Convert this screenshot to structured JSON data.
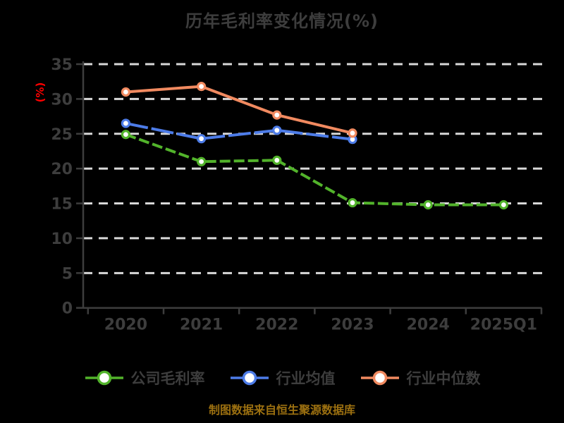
{
  "title": "历年毛利率变化情况(%)",
  "footer": {
    "source_note": "制图数据来自恒生聚源数据库"
  },
  "colors": {
    "background": "#000000",
    "text": "#3d3d3d",
    "axis": "#3d3d3d",
    "grid": "#d8d8d8",
    "ylabel_red": "#ff0000",
    "footer_gold": "#9c7010",
    "company_green": "#52b32b",
    "industry_mean_blue": "#4d7ce8",
    "industry_median_orange": "#f18a60"
  },
  "chart_data": {
    "type": "line",
    "title": "历年毛利率变化情况(%)",
    "xlabel": "",
    "ylabel": "(%)",
    "categories": [
      "2020",
      "2021",
      "2022",
      "2023",
      "2024",
      "2025Q1"
    ],
    "series": [
      {
        "name": "公司毛利率",
        "color": "#52b32b",
        "dash": "15 5",
        "values": [
          24.9,
          21.0,
          21.2,
          15.1,
          14.8,
          14.8
        ]
      },
      {
        "name": "行业均值",
        "color": "#4d7ce8",
        "dash": "32 5",
        "values": [
          26.5,
          24.3,
          25.5,
          24.2,
          null,
          null
        ]
      },
      {
        "name": "行业中位数",
        "color": "#f18a60",
        "dash": "",
        "values": [
          31.0,
          31.8,
          27.7,
          25.1,
          null,
          null
        ]
      }
    ],
    "ylim": [
      0,
      35
    ],
    "yticks": [
      0,
      5,
      10,
      15,
      20,
      25,
      30,
      35
    ],
    "grid": "dashed horizontal",
    "legend_position": "bottom",
    "marker": "circle-white-fill"
  }
}
